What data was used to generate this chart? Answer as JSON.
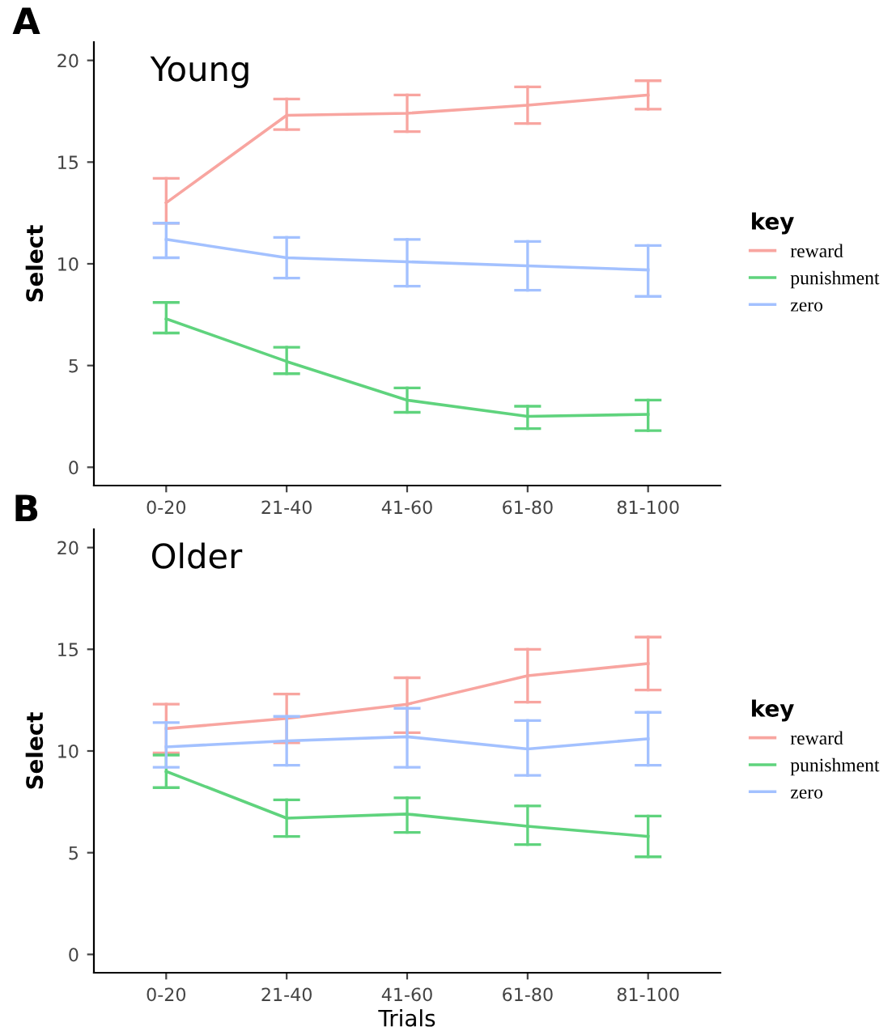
{
  "chart_data": [
    {
      "type": "line",
      "title": "Young",
      "ylabel": "Select",
      "legend_title": "key",
      "legend": "right",
      "annotations": [
        "A"
      ],
      "categories": [
        "0-20",
        "21-40",
        "41-60",
        "61-80",
        "81-100"
      ],
      "ylim": [
        -0.9,
        20.9
      ],
      "yticks": [
        0,
        5,
        10,
        15,
        20
      ],
      "grid": false,
      "marker": "none",
      "line_style": "solid",
      "series": [
        {
          "name": "reward",
          "color": "#f8a5a0",
          "values": [
            13.0,
            17.3,
            17.4,
            17.8,
            18.3
          ],
          "errors": [
            [
              12.0,
              14.2
            ],
            [
              16.6,
              18.1
            ],
            [
              16.5,
              18.3
            ],
            [
              16.9,
              18.7
            ],
            [
              17.6,
              19.0
            ]
          ]
        },
        {
          "name": "punishment",
          "color": "#5fd37d",
          "values": [
            7.3,
            5.2,
            3.3,
            2.5,
            2.6
          ],
          "errors": [
            [
              6.6,
              8.1
            ],
            [
              4.6,
              5.9
            ],
            [
              2.7,
              3.9
            ],
            [
              1.9,
              3.0
            ],
            [
              1.8,
              3.3
            ]
          ]
        },
        {
          "name": "zero",
          "color": "#a3c1ff",
          "values": [
            11.2,
            10.3,
            10.1,
            9.9,
            9.7
          ],
          "errors": [
            [
              10.3,
              12.0
            ],
            [
              9.3,
              11.3
            ],
            [
              8.9,
              11.2
            ],
            [
              8.7,
              11.1
            ],
            [
              8.4,
              10.9
            ]
          ]
        }
      ]
    },
    {
      "type": "line",
      "title": "Older",
      "xlabel": "Trials",
      "ylabel": "Select",
      "legend_title": "key",
      "legend": "right",
      "annotations": [
        "B"
      ],
      "categories": [
        "0-20",
        "21-40",
        "41-60",
        "61-80",
        "81-100"
      ],
      "ylim": [
        -0.9,
        20.9
      ],
      "yticks": [
        0,
        5,
        10,
        15,
        20
      ],
      "grid": false,
      "marker": "none",
      "line_style": "solid",
      "series": [
        {
          "name": "reward",
          "color": "#f8a5a0",
          "values": [
            11.1,
            11.6,
            12.3,
            13.7,
            14.3
          ],
          "errors": [
            [
              9.9,
              12.3
            ],
            [
              10.4,
              12.8
            ],
            [
              10.9,
              13.6
            ],
            [
              12.4,
              15.0
            ],
            [
              13.0,
              15.6
            ]
          ]
        },
        {
          "name": "punishment",
          "color": "#5fd37d",
          "values": [
            9.0,
            6.7,
            6.9,
            6.3,
            5.8
          ],
          "errors": [
            [
              8.2,
              9.8
            ],
            [
              5.8,
              7.6
            ],
            [
              6.0,
              7.7
            ],
            [
              5.4,
              7.3
            ],
            [
              4.8,
              6.8
            ]
          ]
        },
        {
          "name": "zero",
          "color": "#a3c1ff",
          "values": [
            10.2,
            10.5,
            10.7,
            10.1,
            10.6
          ],
          "errors": [
            [
              9.2,
              11.4
            ],
            [
              9.3,
              11.7
            ],
            [
              9.2,
              12.1
            ],
            [
              8.8,
              11.5
            ],
            [
              9.3,
              11.9
            ]
          ]
        }
      ]
    }
  ]
}
